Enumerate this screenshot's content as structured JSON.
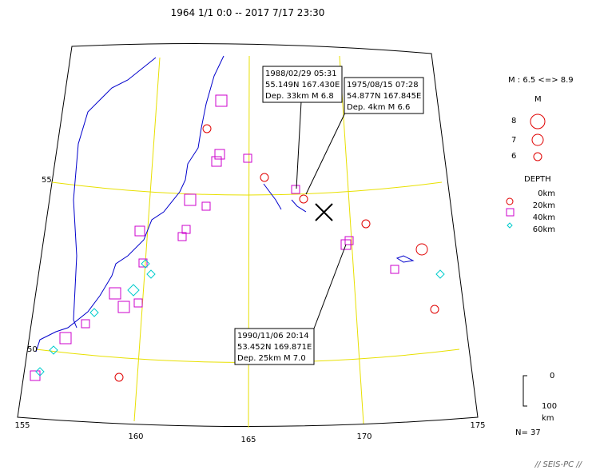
{
  "header": {
    "title": "1964 1/1 0:0 -- 2017 7/17 23:30"
  },
  "map": {
    "lat_labels": [
      "55",
      "50"
    ],
    "lon_labels": [
      "155",
      "160",
      "165",
      "170",
      "175"
    ]
  },
  "callouts": [
    {
      "lines": [
        "1988/02/29 05:31",
        "55.149N  167.430E",
        "Dep. 33km    M 6.8"
      ]
    },
    {
      "lines": [
        "1975/08/15 07:28",
        "54.877N  167.845E",
        "Dep. 4km    M 6.6"
      ]
    },
    {
      "lines": [
        "1990/11/06 20:14",
        "53.452N  169.871E",
        "Dep. 25km    M 7.0"
      ]
    }
  ],
  "legend": {
    "range": "M : 6.5 <=> 8.9",
    "m_title": "M",
    "m_items": [
      "8",
      "7",
      "6"
    ],
    "depth_title": "DEPTH",
    "depth_items": [
      "0km",
      "20km",
      "40km",
      "60km"
    ]
  },
  "scale": {
    "top": "0",
    "bottom": "100",
    "unit": "km"
  },
  "count": "N= 37",
  "footer": "// SEIS-PC //"
}
